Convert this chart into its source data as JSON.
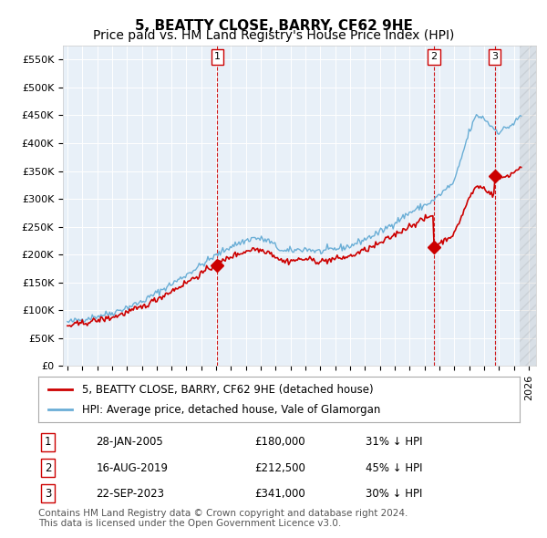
{
  "title": "5, BEATTY CLOSE, BARRY, CF62 9HE",
  "subtitle": "Price paid vs. HM Land Registry's House Price Index (HPI)",
  "ylabel": "",
  "ylim": [
    0,
    575000
  ],
  "yticks": [
    0,
    50000,
    100000,
    150000,
    200000,
    250000,
    300000,
    350000,
    400000,
    450000,
    500000,
    550000
  ],
  "xlim_start": 1995.0,
  "xlim_end": 2026.5,
  "background_color": "#e8f0f8",
  "plot_bg": "#e8f0f8",
  "hpi_color": "#6aaed6",
  "price_color": "#cc0000",
  "sale_marker_color": "#cc0000",
  "dashed_line_color": "#cc0000",
  "legend_box_color": "#ffffff",
  "legend_label_hpi": "HPI: Average price, detached house, Vale of Glamorgan",
  "legend_label_price": "5, BEATTY CLOSE, BARRY, CF62 9HE (detached house)",
  "transactions": [
    {
      "num": 1,
      "date_label": "28-JAN-2005",
      "price": 180000,
      "hpi_pct": "31% ↓ HPI",
      "x": 2005.08
    },
    {
      "num": 2,
      "date_label": "16-AUG-2019",
      "price": 212500,
      "hpi_pct": "45% ↓ HPI",
      "x": 2019.62
    },
    {
      "num": 3,
      "date_label": "22-SEP-2023",
      "price": 341000,
      "hpi_pct": "30% ↓ HPI",
      "x": 2023.72
    }
  ],
  "footer_text": "Contains HM Land Registry data © Crown copyright and database right 2024.\nThis data is licensed under the Open Government Licence v3.0.",
  "title_fontsize": 11,
  "subtitle_fontsize": 10,
  "tick_fontsize": 8,
  "legend_fontsize": 8.5,
  "footer_fontsize": 7.5
}
